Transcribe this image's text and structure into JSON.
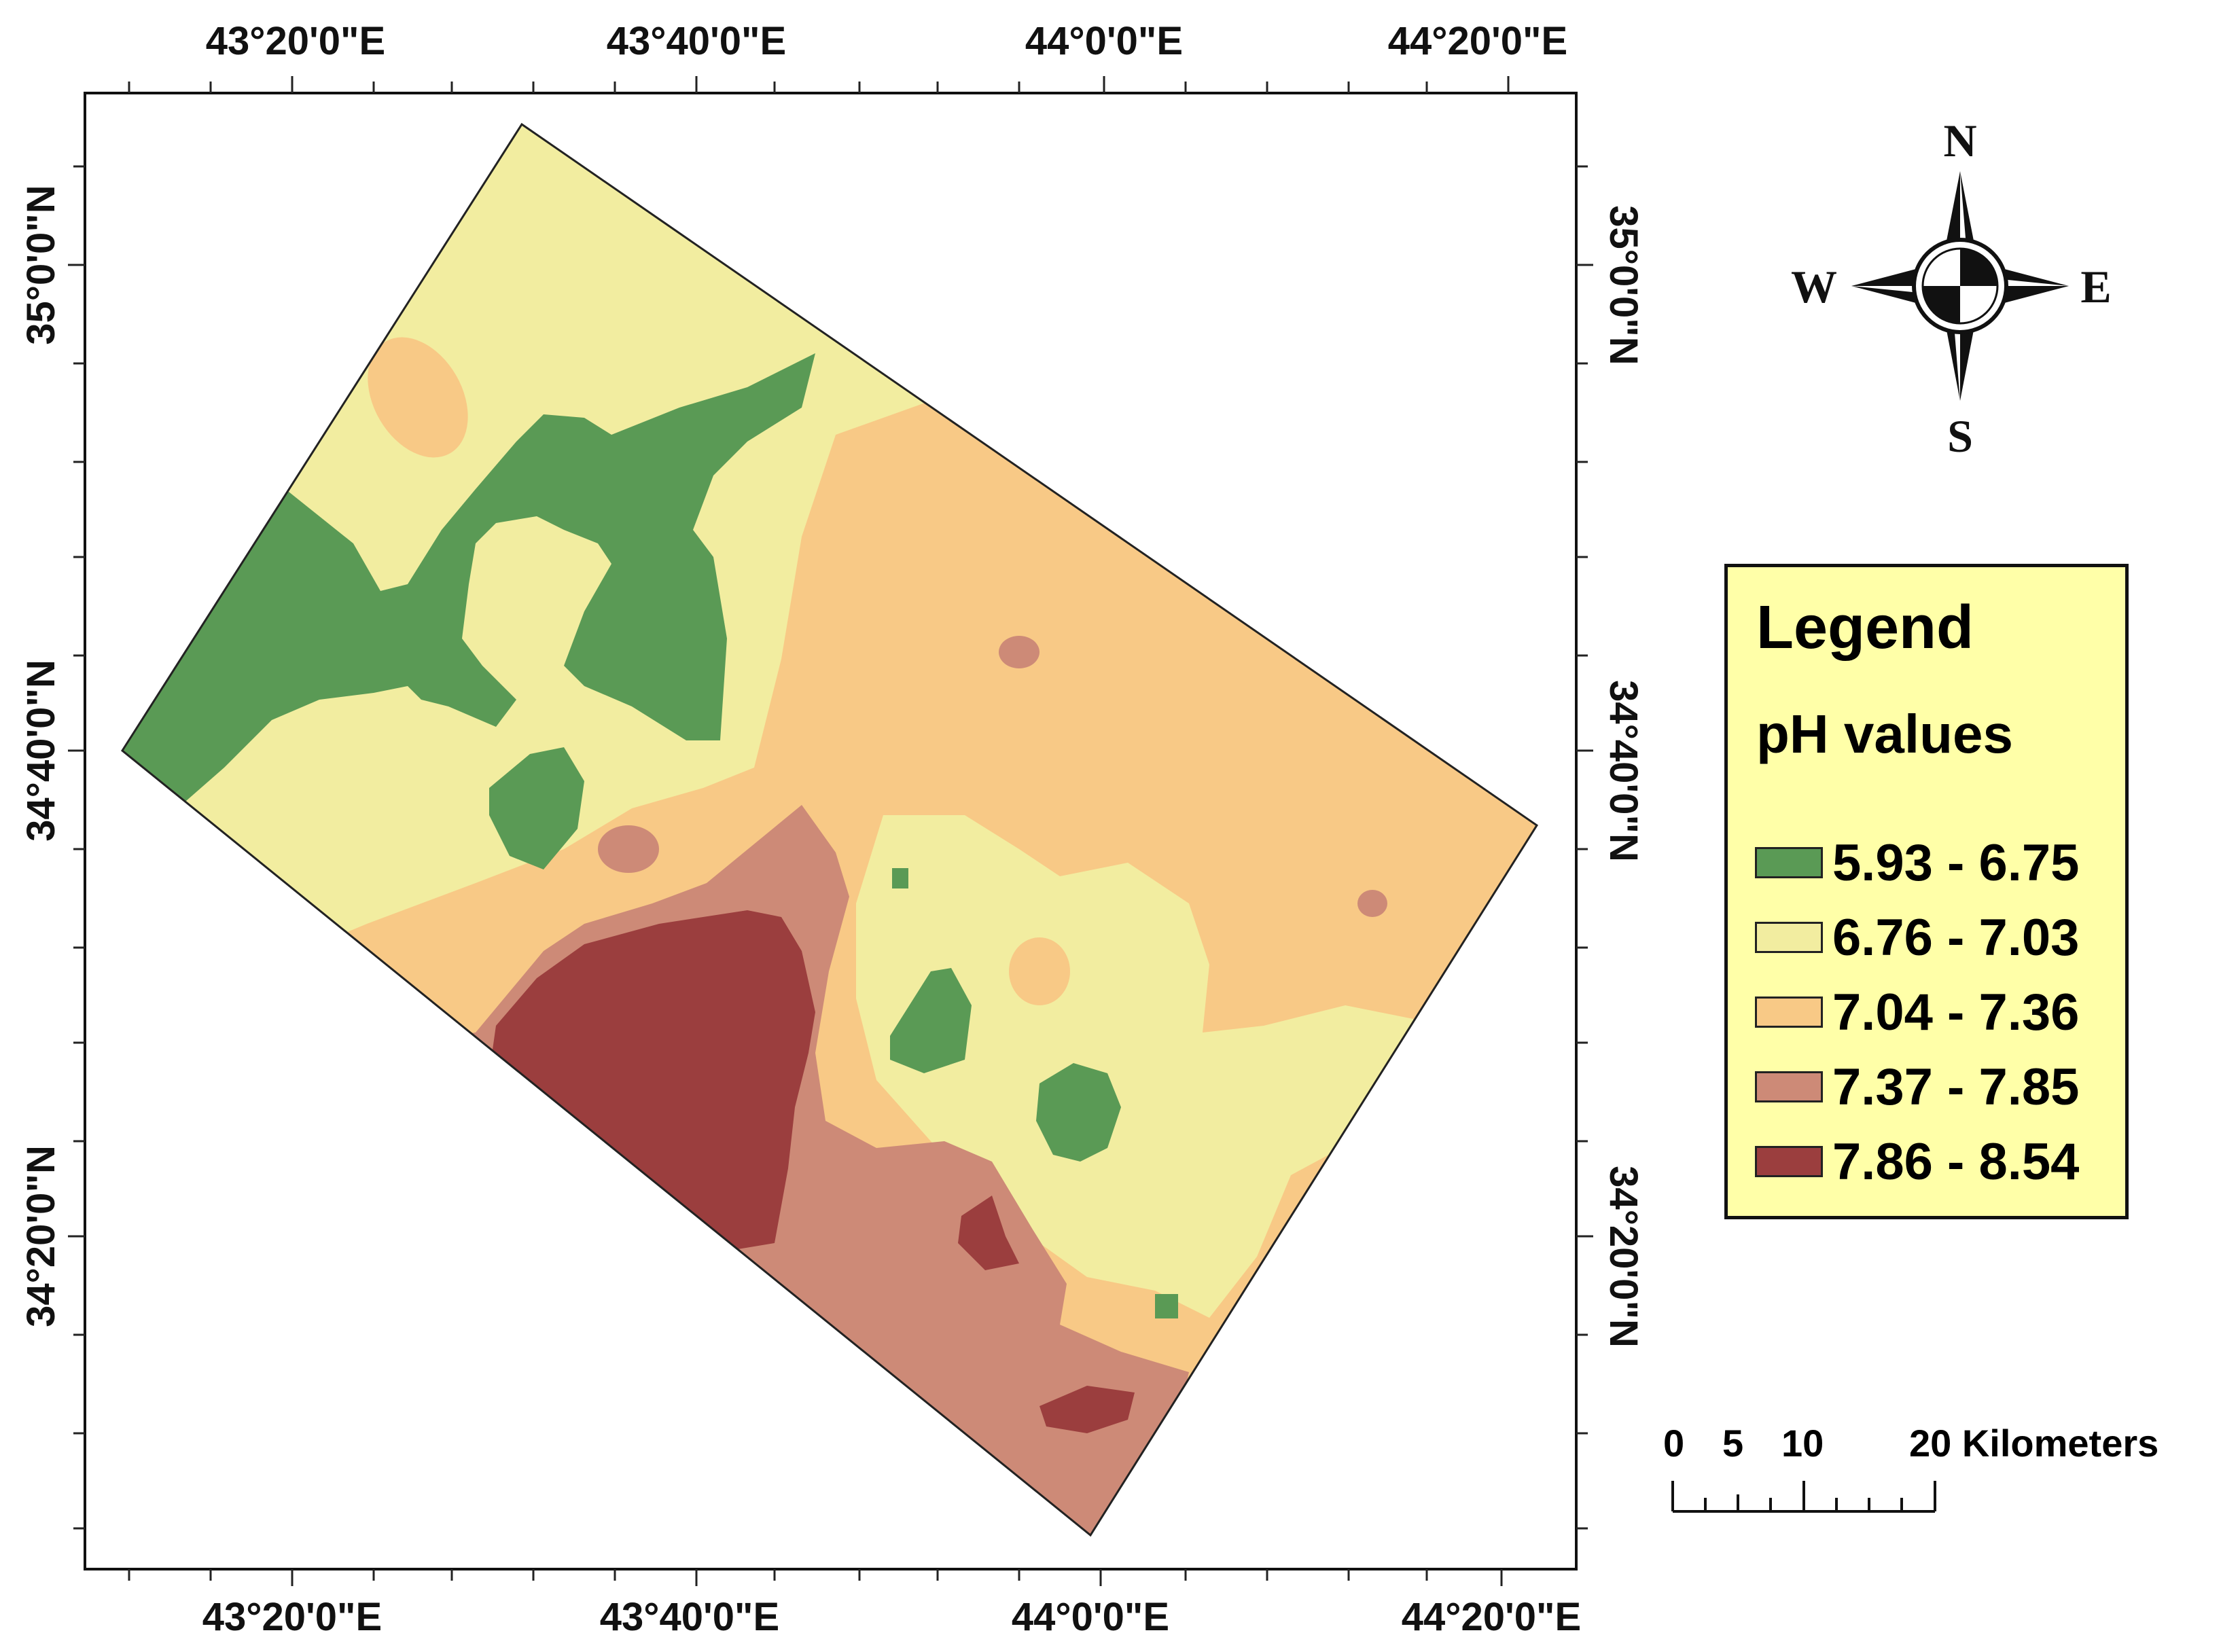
{
  "map": {
    "x_ticks_top": [
      "43°20'0\"E",
      "43°40'0\"E",
      "44°0'0\"E",
      "44°20'0\"E"
    ],
    "x_ticks_bottom": [
      "43°20'0\"E",
      "43°40'0\"E",
      "44°0'0\"E",
      "44°20'0\"E"
    ],
    "y_ticks_left": [
      "35°0'0\"N",
      "34°40'0\"N",
      "34°20'0\"N"
    ],
    "y_ticks_right": [
      "35°0'0\"N",
      "34°40'0\"N",
      "34°20'0\"N"
    ]
  },
  "compass": {
    "north": "N",
    "south": "S",
    "east": "E",
    "west": "W"
  },
  "legend": {
    "title": "Legend",
    "subtitle": "pH values",
    "classes": [
      {
        "label": "5.93 - 6.75",
        "color": "#5a9a55"
      },
      {
        "label": "6.76 - 7.03",
        "color": "#f2eda0"
      },
      {
        "label": "7.04 - 7.36",
        "color": "#f8c986"
      },
      {
        "label": "7.37 - 7.85",
        "color": "#cd8a77"
      },
      {
        "label": "7.86 - 8.54",
        "color": "#9b3e3e"
      }
    ]
  },
  "scale_bar": {
    "labels": [
      "0",
      "5",
      "10",
      "20 Kilometers"
    ]
  }
}
